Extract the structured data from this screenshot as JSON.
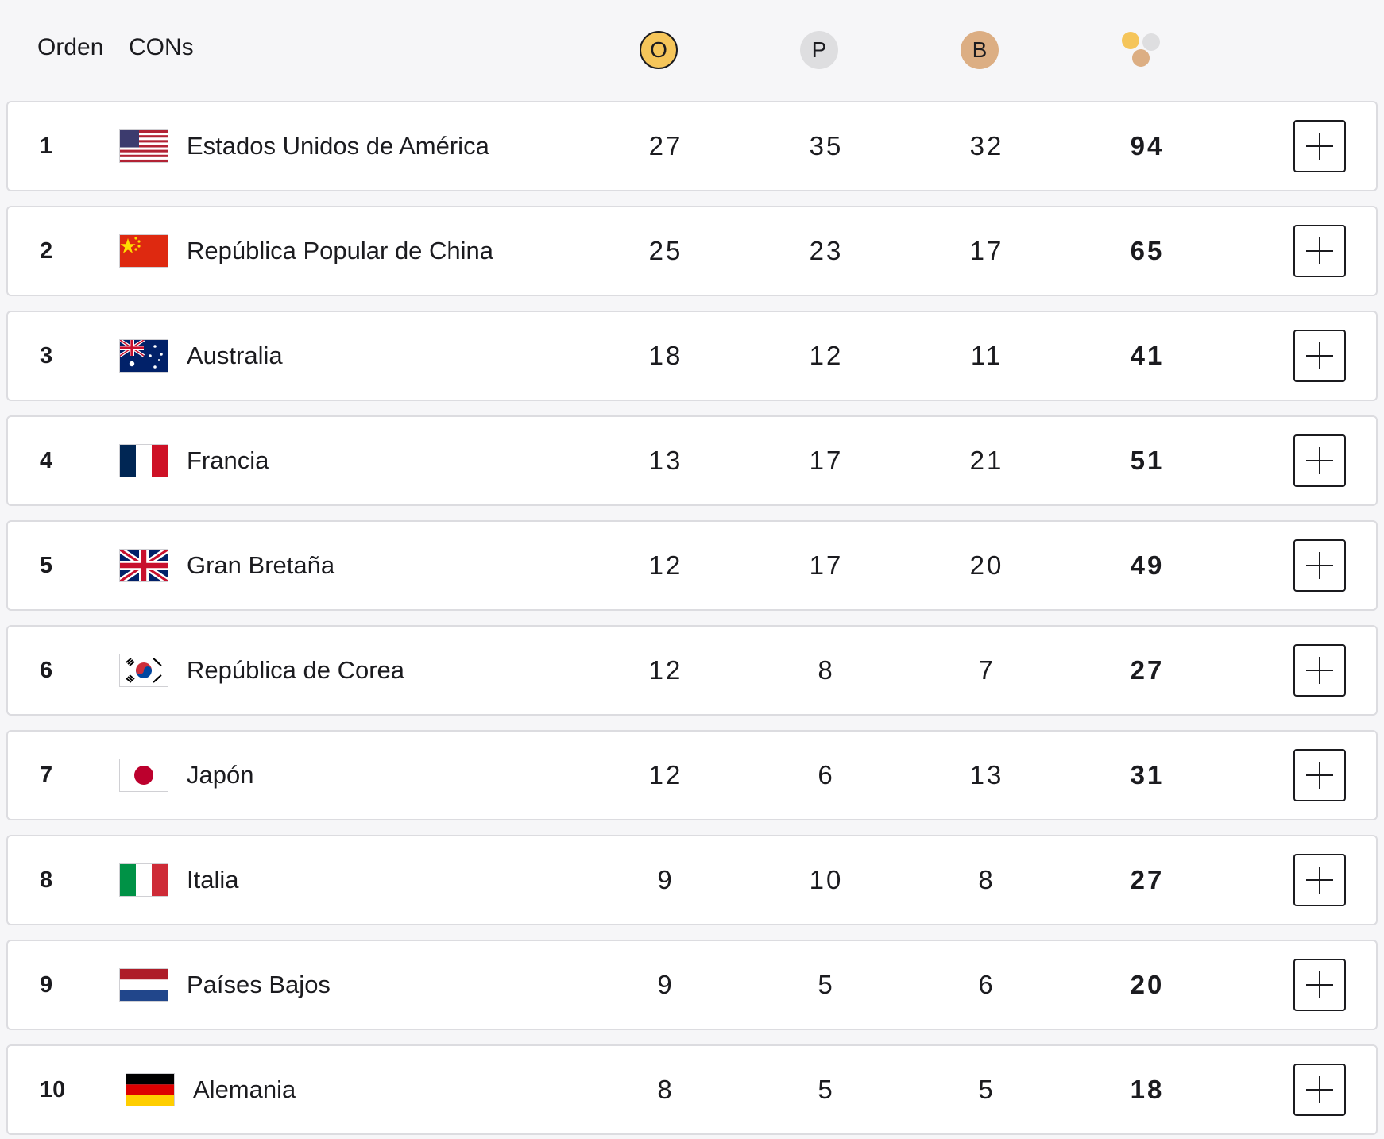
{
  "header": {
    "rank_label": "Orden",
    "noc_label": "CONs",
    "gold_label": "O",
    "silver_label": "P",
    "bronze_label": "B",
    "icons": {
      "total": "medals-total-icon",
      "expand": "plus-icon"
    },
    "colors": {
      "gold": "#f5c55a",
      "silver": "#dedee0",
      "bronze": "#dcae83"
    }
  },
  "rows": [
    {
      "rank": "1",
      "country": "Estados Unidos de América",
      "flag": "usa-flag-icon",
      "gold": "27",
      "silver": "35",
      "bronze": "32",
      "total": "94"
    },
    {
      "rank": "2",
      "country": "República Popular de China",
      "flag": "china-flag-icon",
      "gold": "25",
      "silver": "23",
      "bronze": "17",
      "total": "65"
    },
    {
      "rank": "3",
      "country": "Australia",
      "flag": "australia-flag-icon",
      "gold": "18",
      "silver": "12",
      "bronze": "11",
      "total": "41"
    },
    {
      "rank": "4",
      "country": "Francia",
      "flag": "france-flag-icon",
      "gold": "13",
      "silver": "17",
      "bronze": "21",
      "total": "51"
    },
    {
      "rank": "5",
      "country": "Gran Bretaña",
      "flag": "great-britain-flag-icon",
      "gold": "12",
      "silver": "17",
      "bronze": "20",
      "total": "49"
    },
    {
      "rank": "6",
      "country": "República de Corea",
      "flag": "korea-flag-icon",
      "gold": "12",
      "silver": "8",
      "bronze": "7",
      "total": "27"
    },
    {
      "rank": "7",
      "country": "Japón",
      "flag": "japan-flag-icon",
      "gold": "12",
      "silver": "6",
      "bronze": "13",
      "total": "31"
    },
    {
      "rank": "8",
      "country": "Italia",
      "flag": "italy-flag-icon",
      "gold": "9",
      "silver": "10",
      "bronze": "8",
      "total": "27"
    },
    {
      "rank": "9",
      "country": "Países Bajos",
      "flag": "netherlands-flag-icon",
      "gold": "9",
      "silver": "5",
      "bronze": "6",
      "total": "20"
    },
    {
      "rank": "10",
      "country": "Alemania",
      "flag": "germany-flag-icon",
      "gold": "8",
      "silver": "5",
      "bronze": "5",
      "total": "18"
    }
  ]
}
